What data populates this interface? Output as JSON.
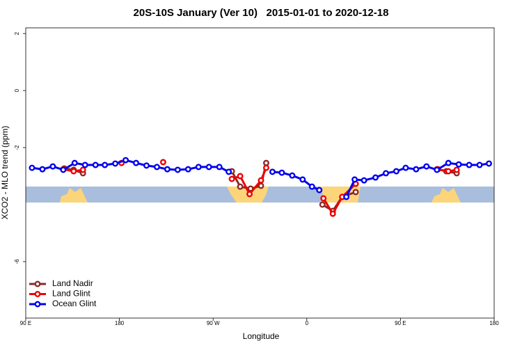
{
  "chart_data": {
    "type": "line",
    "title": "20S-10S January (Ver 10)   2015-01-01 to 2020-12-18",
    "x_label": "Longitude",
    "y_label": "XCO2 - MLO trend (ppm)",
    "xlim": [
      90,
      540
    ],
    "xticks": [
      {
        "value": 90,
        "label": "90 E"
      },
      {
        "value": 180,
        "label": "180"
      },
      {
        "value": 270,
        "label": "90 W"
      },
      {
        "value": 360,
        "label": "0"
      },
      {
        "value": 450,
        "label": "90 E"
      },
      {
        "value": 540,
        "label": "180"
      }
    ],
    "ylim": [
      -7.98,
      2.2
    ],
    "yticks": [
      -6,
      -2,
      0,
      2
    ],
    "legend": "bottom-left",
    "series": [
      {
        "name": "Land Nadir",
        "color": "#8b2a2a",
        "x": [
          127,
          136,
          145,
          null,
          288,
          296,
          306,
          316,
          321,
          null,
          375,
          385,
          394,
          407,
          null,
          486,
          494,
          504
        ],
        "values": [
          -2.73,
          -2.78,
          -2.9,
          null,
          -2.83,
          -3.37,
          -3.44,
          -3.34,
          -2.54,
          null,
          -4.0,
          -4.22,
          -3.73,
          -3.56,
          null,
          -2.76,
          -2.83,
          -2.9
        ]
      },
      {
        "name": "Land Glint",
        "color": "#ee0000",
        "x": [
          126,
          136,
          145,
          null,
          182,
          null,
          222,
          null,
          288,
          296,
          305,
          316,
          321,
          null,
          376,
          385,
          394,
          407,
          null,
          485,
          496,
          504
        ],
        "values": [
          -2.76,
          -2.83,
          -2.78,
          null,
          -2.54,
          null,
          -2.51,
          null,
          -3.1,
          -3.0,
          -3.63,
          -3.15,
          -2.71,
          null,
          -3.78,
          -4.32,
          -3.73,
          -3.27,
          null,
          -2.76,
          -2.83,
          -2.78
        ]
      },
      {
        "name": "Ocean Glint",
        "color": "#0000ee",
        "x": [
          96,
          106,
          116,
          126,
          137,
          147,
          157,
          166,
          176,
          186,
          196,
          206,
          216,
          226,
          236,
          246,
          256,
          266,
          276,
          285,
          null,
          327,
          336,
          346,
          356,
          365,
          372,
          null,
          398,
          406,
          415,
          426,
          436,
          446,
          455,
          465,
          475,
          485,
          496,
          506,
          516,
          526,
          535
        ],
        "values": [
          -2.71,
          -2.76,
          -2.66,
          -2.78,
          -2.54,
          -2.61,
          -2.61,
          -2.61,
          -2.56,
          -2.44,
          -2.54,
          -2.63,
          -2.68,
          -2.76,
          -2.78,
          -2.76,
          -2.68,
          -2.68,
          -2.68,
          -2.85,
          null,
          -2.85,
          -2.88,
          -2.98,
          -3.12,
          -3.37,
          -3.49,
          null,
          -3.73,
          -3.12,
          -3.15,
          -3.05,
          -2.9,
          -2.83,
          -2.71,
          -2.76,
          -2.66,
          -2.78,
          -2.54,
          -2.59,
          -2.61,
          -2.61,
          -2.56
        ]
      }
    ]
  }
}
